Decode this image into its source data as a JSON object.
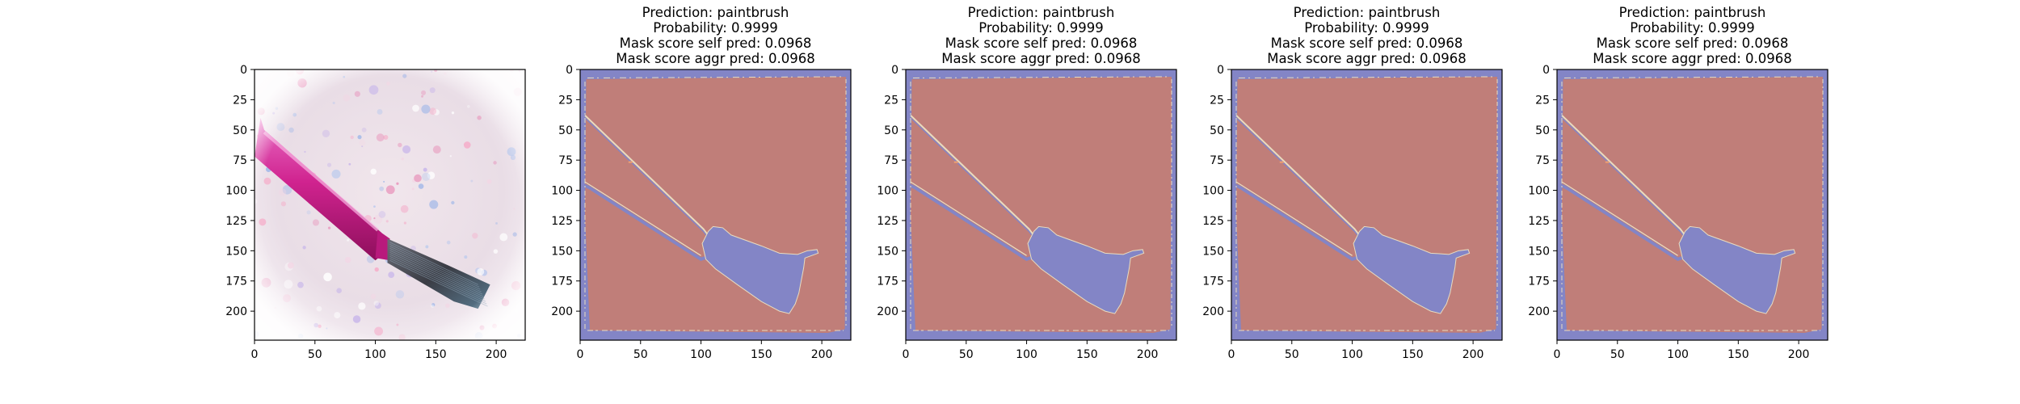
{
  "figure": {
    "background": "#ffffff",
    "panels": [
      {
        "kind": "image",
        "title_lines": [],
        "description": "photo of pink paintbrush on glitter background"
      },
      {
        "kind": "mask",
        "title_lines": [
          "Prediction: paintbrush",
          "Probability: 0.9999",
          "Mask score self pred: 0.0968",
          "Mask score aggr pred: 0.0968"
        ]
      },
      {
        "kind": "mask",
        "title_lines": [
          "Prediction: paintbrush",
          "Probability: 0.9999",
          "Mask score self pred: 0.0968",
          "Mask score aggr pred: 0.0968"
        ]
      },
      {
        "kind": "mask",
        "title_lines": [
          "Prediction: paintbrush",
          "Probability: 0.9999",
          "Mask score self pred: 0.0968",
          "Mask score aggr pred: 0.0968"
        ]
      },
      {
        "kind": "mask",
        "title_lines": [
          "Prediction: paintbrush",
          "Probability: 0.9999",
          "Mask score self pred: 0.0968",
          "Mask score aggr pred: 0.0968"
        ]
      }
    ]
  },
  "chart_data": [
    {
      "type": "heatmap",
      "title": "",
      "xlabel": "",
      "ylabel": "",
      "xlim": [
        0,
        224
      ],
      "ylim": [
        224,
        0
      ],
      "x_ticks": [
        0,
        50,
        100,
        150,
        200
      ],
      "y_ticks": [
        0,
        25,
        50,
        75,
        100,
        125,
        150,
        175,
        200
      ],
      "grid": false,
      "content": "rgb image"
    },
    {
      "type": "heatmap",
      "title": "Prediction: paintbrush\nProbability: 0.9999\nMask score self pred: 0.0968\nMask score aggr pred: 0.0968",
      "xlabel": "",
      "ylabel": "",
      "xlim": [
        0,
        224
      ],
      "ylim": [
        224,
        0
      ],
      "x_ticks": [
        0,
        50,
        100,
        150,
        200
      ],
      "y_ticks": [
        0,
        25,
        50,
        75,
        100,
        125,
        150,
        175,
        200
      ],
      "grid": false,
      "colors": {
        "mask": "#c07e79",
        "background": "#8385c6",
        "edge": "#e8dcc0"
      }
    },
    {
      "type": "heatmap",
      "title": "Prediction: paintbrush\nProbability: 0.9999\nMask score self pred: 0.0968\nMask score aggr pred: 0.0968",
      "xlabel": "",
      "ylabel": "",
      "xlim": [
        0,
        224
      ],
      "ylim": [
        224,
        0
      ],
      "x_ticks": [
        0,
        50,
        100,
        150,
        200
      ],
      "y_ticks": [
        0,
        25,
        50,
        75,
        100,
        125,
        150,
        175,
        200
      ],
      "grid": false,
      "colors": {
        "mask": "#c07e79",
        "background": "#8385c6",
        "edge": "#e8dcc0"
      }
    },
    {
      "type": "heatmap",
      "title": "Prediction: paintbrush\nProbability: 0.9999\nMask score self pred: 0.0968\nMask score aggr pred: 0.0968",
      "xlabel": "",
      "ylabel": "",
      "xlim": [
        0,
        224
      ],
      "ylim": [
        224,
        0
      ],
      "x_ticks": [
        0,
        50,
        100,
        150,
        200
      ],
      "y_ticks": [
        0,
        25,
        50,
        75,
        100,
        125,
        150,
        175,
        200
      ],
      "grid": false,
      "colors": {
        "mask": "#c07e79",
        "background": "#8385c6",
        "edge": "#e8dcc0"
      }
    },
    {
      "type": "heatmap",
      "title": "Prediction: paintbrush\nProbability: 0.9999\nMask score self pred: 0.0968\nMask score aggr pred: 0.0968",
      "xlabel": "",
      "ylabel": "",
      "xlim": [
        0,
        224
      ],
      "ylim": [
        224,
        0
      ],
      "x_ticks": [
        0,
        50,
        100,
        150,
        200
      ],
      "y_ticks": [
        0,
        25,
        50,
        75,
        100,
        125,
        150,
        175,
        200
      ],
      "grid": false,
      "colors": {
        "mask": "#c07e79",
        "background": "#8385c6",
        "edge": "#e8dcc0"
      }
    }
  ]
}
